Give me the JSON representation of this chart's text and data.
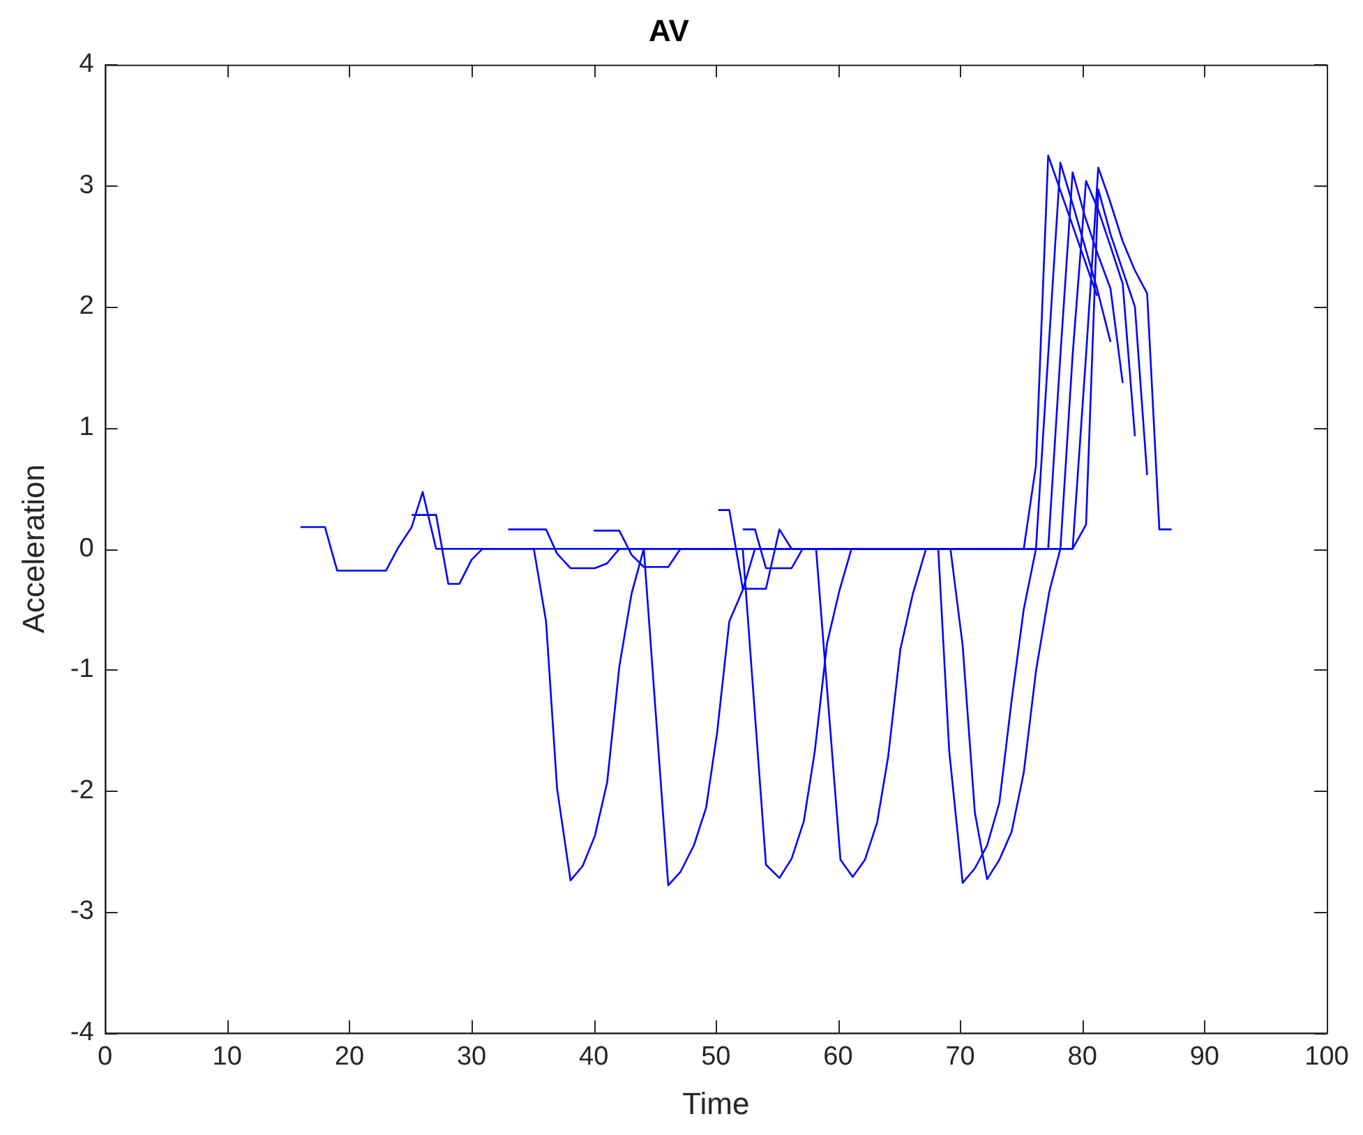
{
  "chart_data": {
    "type": "line",
    "title": "AV",
    "xlabel": "Time",
    "ylabel": "Acceleration",
    "xlim": [
      0,
      100
    ],
    "xticks": [
      0,
      10,
      20,
      30,
      40,
      50,
      60,
      70,
      80,
      90,
      100
    ],
    "ylim": [
      -4,
      4
    ],
    "yticks": [
      -4,
      -3,
      -2,
      -1,
      0,
      1,
      2,
      3,
      4
    ],
    "grid": false,
    "legend": false,
    "marker": "none",
    "line_style": "solid",
    "series": [
      {
        "color": "#0000ff",
        "x": [
          16,
          18,
          19,
          23,
          24,
          25.1,
          26,
          27.1,
          75.2,
          76.2,
          77.2,
          78.2,
          79.2,
          80.2,
          81.2
        ],
        "values": [
          0.18,
          0.18,
          -0.18,
          -0.18,
          0.01,
          0.18,
          0.47,
          0,
          0,
          0.69,
          3.25,
          2.96,
          2.67,
          2.38,
          2.09
        ]
      },
      {
        "color": "#0000ff",
        "x": [
          25.1,
          27.1,
          28.1,
          29,
          30,
          30.9,
          35.1,
          36.1,
          37,
          38.1,
          39.1,
          40.1,
          41.1,
          42.1,
          43.1,
          44.1,
          76.2,
          77.2,
          78.2,
          79.2,
          80.2,
          81.2,
          82.3
        ],
        "values": [
          0.28,
          0.28,
          -0.29,
          -0.29,
          -0.09,
          0,
          0,
          -0.6,
          -1.98,
          -2.74,
          -2.62,
          -2.37,
          -1.93,
          -0.97,
          -0.37,
          0,
          0,
          1.6,
          3.19,
          2.85,
          2.5,
          2.15,
          1.71
        ]
      },
      {
        "color": "#0000ff",
        "x": [
          33,
          36.1,
          37,
          38.1,
          40.1,
          41.1,
          42.1,
          44.1,
          46.1,
          47.1,
          48.2,
          49.2,
          50.1,
          51.1,
          52.2,
          53.2,
          77.2,
          78.2,
          79.2,
          80.2,
          81.2,
          82.3,
          83.3
        ],
        "values": [
          0.16,
          0.16,
          -0.04,
          -0.16,
          -0.16,
          -0.12,
          0,
          0,
          -2.78,
          -2.67,
          -2.45,
          -2.14,
          -1.52,
          -0.6,
          -0.34,
          0,
          0,
          1.6,
          3.11,
          2.75,
          2.45,
          2.15,
          1.37
        ]
      },
      {
        "color": "#0000ff",
        "x": [
          40,
          42.1,
          43.1,
          44.1,
          46.1,
          47.1,
          52.2,
          54.1,
          55.2,
          56.2,
          57.2,
          58.1,
          59.1,
          60.1,
          61.1,
          69.2,
          70.2,
          71.2,
          72.2,
          73.2,
          74.2,
          75.2,
          76.2,
          77.3,
          78.2,
          79.2,
          80.3,
          81.3,
          82.3,
          83.3,
          84.3
        ],
        "values": [
          0.15,
          0.15,
          -0.05,
          -0.15,
          -0.15,
          0,
          0,
          -2.61,
          -2.72,
          -2.56,
          -2.25,
          -1.67,
          -0.78,
          -0.35,
          0,
          0,
          -0.8,
          -2.18,
          -2.73,
          -2.57,
          -2.34,
          -1.85,
          -1.01,
          -0.35,
          0,
          1.6,
          3.04,
          2.8,
          2.5,
          2.19,
          0.93
        ]
      },
      {
        "color": "#0000ff",
        "x": [
          50.2,
          51.1,
          52.2,
          54.1,
          55.2,
          56.2,
          58.2,
          60.2,
          61.2,
          62.2,
          63.2,
          64.1,
          65.1,
          66.1,
          67.2,
          79.2,
          80.3,
          81.3,
          82.2,
          83.3,
          84.3,
          85.3,
          86.3,
          87.3
        ],
        "values": [
          0.32,
          0.32,
          -0.33,
          -0.33,
          0.16,
          0,
          0,
          -2.57,
          -2.71,
          -2.57,
          -2.26,
          -1.72,
          -0.83,
          -0.38,
          0,
          0,
          1.6,
          3.15,
          2.89,
          2.54,
          2.3,
          2.11,
          0.16,
          0.16
        ]
      },
      {
        "color": "#0000ff",
        "x": [
          52.2,
          53.2,
          54.1,
          56.2,
          57.1,
          68.2,
          69.1,
          70.2,
          71.2,
          72.2,
          73.2,
          74.2,
          75.2,
          76.2,
          79.2,
          80.3,
          81.3,
          82.3,
          83.3,
          84.3,
          85.3
        ],
        "values": [
          0.16,
          0.16,
          -0.16,
          -0.16,
          0,
          0,
          -1.67,
          -2.76,
          -2.64,
          -2.45,
          -2.1,
          -1.26,
          -0.5,
          0,
          0,
          0.2,
          2.97,
          2.6,
          2.3,
          2.0,
          0.61
        ]
      }
    ]
  }
}
